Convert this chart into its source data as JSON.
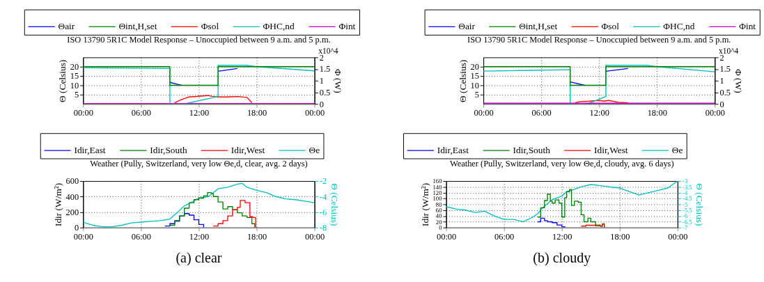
{
  "chart_data": [
    {
      "type": "line",
      "title": "ISO 13790 5R1C Model Response – Unoccupied between 9 a.m. and 5 p.m.",
      "ylabel": "Θ (Celsius)",
      "y2label": "Φ (W)",
      "annotations": [
        "x10^4"
      ],
      "legend": "top",
      "grid": true,
      "xlim": [
        0,
        24
      ],
      "xticks": [
        {
          "value": 0,
          "label": "00:00"
        },
        {
          "value": 6,
          "label": "06:00"
        },
        {
          "value": 12,
          "label": "12:00"
        },
        {
          "value": 18,
          "label": "18:00"
        },
        {
          "value": 24,
          "label": "00:00"
        }
      ],
      "ylim": [
        0,
        25
      ],
      "yticks": [
        5,
        10,
        15,
        20
      ],
      "y2lim": [
        0,
        2
      ],
      "y2ticks": [
        0,
        0.5,
        1,
        1.5,
        2
      ],
      "series": [
        {
          "name": "Θair",
          "color": "#0000ff",
          "x": [
            9,
            10.2,
            12,
            14,
            16
          ],
          "values": [
            11.6,
            10,
            null,
            17.5,
            19
          ]
        },
        {
          "name": "Θint,H,set",
          "color": "#008000",
          "x": [
            0,
            9,
            9,
            14,
            14,
            24
          ],
          "values": [
            20,
            20,
            10,
            10,
            20,
            20
          ]
        },
        {
          "name": "Φsol",
          "color": "#ff0000",
          "axis": "y2",
          "x": [
            9.5,
            10,
            11,
            12,
            12.9,
            13.5,
            14,
            15,
            16,
            17,
            17.5
          ],
          "values": [
            0.05,
            0.15,
            0.3,
            0.33,
            0.36,
            0.32,
            0.3,
            0.3,
            0.32,
            0.28,
            0.05
          ]
        },
        {
          "name": "ΦHC,nd",
          "color": "#00bfbf",
          "axis": "y2",
          "x": [
            0,
            9,
            9,
            10.5,
            14,
            14,
            16.9,
            18,
            24
          ],
          "values": [
            1.55,
            1.52,
            0,
            0,
            0.32,
            1.66,
            1.66,
            1.6,
            1.42
          ]
        },
        {
          "name": "Φint",
          "color": "#bf00bf",
          "axis": "y2",
          "x": [
            0,
            24
          ],
          "values": [
            0.02,
            0.02
          ]
        }
      ]
    },
    {
      "type": "line",
      "title": "ISO 13790 5R1C Model Response – Unoccupied between 9 a.m. and 5 p.m.",
      "ylabel": "Θ (Celsius)",
      "y2label": "Φ (W)",
      "annotations": [
        "x10^4"
      ],
      "legend": "top",
      "grid": true,
      "xlim": [
        0,
        24
      ],
      "xticks": [
        {
          "value": 0,
          "label": "00:00"
        },
        {
          "value": 6,
          "label": "06:00"
        },
        {
          "value": 12,
          "label": "12:00"
        },
        {
          "value": 18,
          "label": "18:00"
        },
        {
          "value": 24,
          "label": "00:00"
        }
      ],
      "ylim": [
        0,
        25
      ],
      "yticks": [
        5,
        10,
        15,
        20
      ],
      "y2lim": [
        0,
        2
      ],
      "y2ticks": [
        0,
        0.5,
        1,
        1.5,
        2
      ],
      "series": [
        {
          "name": "Θair",
          "color": "#0000ff",
          "x": [
            9,
            10.5,
            12,
            12.7,
            15
          ],
          "values": [
            11.8,
            10,
            null,
            17.5,
            19
          ]
        },
        {
          "name": "Θint,H,set",
          "color": "#008000",
          "x": [
            0,
            9,
            9,
            12.7,
            12.7,
            24
          ],
          "values": [
            20,
            20,
            10,
            10,
            20,
            20
          ]
        },
        {
          "name": "Φsol",
          "color": "#ff0000",
          "axis": "y2",
          "x": [
            9.5,
            10,
            11,
            12,
            12.5,
            13,
            14,
            15
          ],
          "values": [
            0.05,
            0.1,
            0.12,
            0.15,
            0.12,
            0.15,
            0.07,
            0.05
          ]
        },
        {
          "name": "ΦHC,nd",
          "color": "#00bfbf",
          "axis": "y2",
          "x": [
            0,
            9,
            9,
            10.8,
            12.7,
            12.7,
            16.9,
            18,
            24
          ],
          "values": [
            1.41,
            1.47,
            0,
            0,
            0.32,
            1.66,
            1.66,
            1.6,
            1.38
          ]
        },
        {
          "name": "Φint",
          "color": "#bf00bf",
          "axis": "y2",
          "x": [
            0,
            24
          ],
          "values": [
            0.03,
            0.03
          ]
        }
      ]
    },
    {
      "type": "step",
      "title": "Weather (Pully, Switzerland, very low  Θe,d, clear, avg. 2 days)",
      "ylabel": "Idir (W/m²)",
      "y2label": "Θ (Celsius)",
      "annotations": [
        "(a) clear"
      ],
      "legend": "top",
      "grid": true,
      "xlim": [
        0,
        24
      ],
      "xticks": [
        {
          "value": 0,
          "label": "00:00"
        },
        {
          "value": 6,
          "label": "06:00"
        },
        {
          "value": 12,
          "label": "12:00"
        },
        {
          "value": 18,
          "label": "18:00"
        },
        {
          "value": 24,
          "label": "00:00"
        }
      ],
      "ylim": [
        0,
        600
      ],
      "yticks": [
        0,
        200,
        400,
        600
      ],
      "y2lim": [
        -8,
        -2
      ],
      "y2ticks": [
        -8,
        -6,
        -4,
        -2
      ],
      "series": [
        {
          "name": "Idir,East",
          "color": "#0000ff",
          "x": [
            8.5,
            9,
            9.5,
            10,
            10.5,
            11,
            11.5,
            12,
            12.5
          ],
          "values": [
            20,
            50,
            90,
            150,
            180,
            160,
            100,
            40,
            0
          ]
        },
        {
          "name": "Idir,South",
          "color": "#008000",
          "x": [
            9,
            9.5,
            10,
            10.5,
            11,
            11.5,
            12,
            12.5,
            12.9,
            13.3,
            13.5,
            14,
            14.5,
            15,
            15.5,
            16,
            16.5,
            17,
            17.5,
            17.8
          ],
          "values": [
            30,
            80,
            150,
            250,
            320,
            360,
            380,
            410,
            450,
            440,
            400,
            330,
            240,
            270,
            230,
            190,
            150,
            130,
            50,
            0
          ]
        },
        {
          "name": "Idir,West",
          "color": "#ff0000",
          "x": [
            13.5,
            14,
            14.5,
            15,
            15.5,
            16,
            16.3,
            16.8,
            17.3,
            17.6,
            17.9
          ],
          "values": [
            20,
            50,
            90,
            150,
            230,
            260,
            350,
            320,
            140,
            130,
            0
          ]
        },
        {
          "name": "Θe",
          "color": "#00bfbf",
          "axis": "y2",
          "type": "line",
          "x": [
            0,
            1,
            2,
            3,
            4,
            5,
            6,
            7,
            8,
            9,
            10,
            10.5,
            11,
            12,
            13,
            13.5,
            14,
            15,
            16,
            16.5,
            17,
            18,
            19,
            20,
            21,
            22,
            23,
            24
          ],
          "values": [
            -7.3,
            -7.7,
            -7.9,
            -7.9,
            -7.7,
            -7.4,
            -7.3,
            -7.2,
            -7.1,
            -6.9,
            -5.8,
            -5.2,
            -4.9,
            -4.2,
            -4.0,
            -3.5,
            -3.0,
            -2.8,
            -2.4,
            -2.3,
            -2.8,
            -3.2,
            -3.5,
            -4.0,
            -4.3,
            -4.4,
            -4.6,
            -4.8
          ]
        }
      ]
    },
    {
      "type": "step",
      "title": "Weather (Pully, Switzerland, very low  Θe,d, cloudy, avg. 6 days)",
      "ylabel": "Idir (W/m²)",
      "y2label": "Θ (Celsius)",
      "annotations": [
        "(b) cloudy"
      ],
      "legend": "top",
      "grid": true,
      "xlim": [
        0,
        24
      ],
      "xticks": [
        {
          "value": 0,
          "label": "00:00"
        },
        {
          "value": 6,
          "label": "06:00"
        },
        {
          "value": 12,
          "label": "12:00"
        },
        {
          "value": 18,
          "label": "18:00"
        },
        {
          "value": 24,
          "label": "00:00"
        }
      ],
      "ylim": [
        0,
        160
      ],
      "yticks": [
        0,
        20,
        40,
        60,
        80,
        100,
        120,
        140,
        160
      ],
      "y2lim": [
        -7,
        -3
      ],
      "y2ticks": [
        -7,
        -6.5,
        -6,
        -5.5,
        -5,
        -4.5,
        -4,
        -3.5,
        -3
      ],
      "series": [
        {
          "name": "Idir,East",
          "color": "#0000ff",
          "x": [
            9.5,
            9.8,
            10.2,
            10.5,
            11,
            11.5,
            12,
            12.3
          ],
          "values": [
            20,
            32,
            24,
            20,
            17,
            9,
            3,
            0
          ]
        },
        {
          "name": "Idir,South",
          "color": "#008000",
          "x": [
            9.5,
            9.8,
            10.2,
            10.5,
            10.8,
            11,
            11.3,
            11.7,
            12,
            12.3,
            12.5,
            12.8,
            13,
            13.3,
            13.7,
            14,
            14.3,
            14.7,
            15,
            15.5,
            16,
            16.2,
            16.4
          ],
          "values": [
            36,
            68,
            93,
            115,
            91,
            84,
            95,
            84,
            36,
            103,
            123,
            131,
            76,
            91,
            87,
            44,
            20,
            32,
            20,
            9,
            5,
            13,
            0
          ]
        },
        {
          "name": "Idir,West",
          "color": "#ff0000",
          "x": [
            14,
            14.5,
            15,
            15.5,
            16,
            16.2,
            16.4
          ],
          "values": [
            5,
            8,
            8,
            6,
            5,
            12,
            0
          ]
        },
        {
          "name": "Θe",
          "color": "#00bfbf",
          "axis": "y2",
          "type": "line",
          "x": [
            0,
            1,
            2,
            3,
            4,
            5,
            6,
            7,
            8,
            9,
            9.5,
            10,
            11,
            12,
            12.5,
            13,
            14,
            15,
            16,
            17,
            18,
            19,
            20,
            21,
            22,
            23,
            24
          ],
          "values": [
            -5.2,
            -5.4,
            -5.5,
            -5.7,
            -5.6,
            -6.0,
            -6.3,
            -6.3,
            -6.5,
            -6.1,
            -5.8,
            -5.3,
            -4.6,
            -4.3,
            -3.9,
            -3.8,
            -3.5,
            -3.3,
            -3.4,
            -3.5,
            -3.6,
            -3.9,
            -4.2,
            -4.0,
            -3.8,
            -3.6,
            -3.0
          ]
        }
      ]
    }
  ]
}
